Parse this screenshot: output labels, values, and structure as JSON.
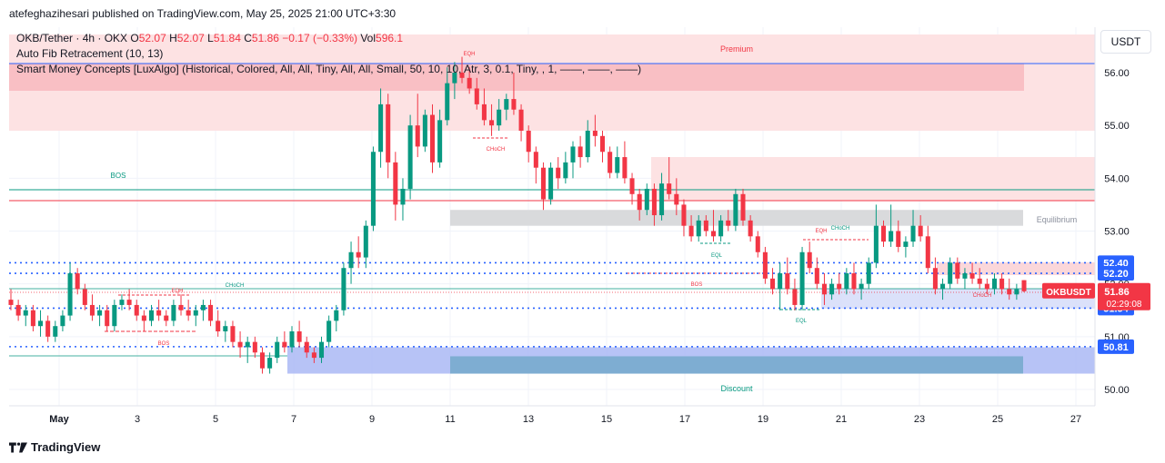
{
  "header": {
    "credit": "atefeghazihesari published on TradingView.com, May 25, 2025 21:00 UTC+3:30"
  },
  "legend": {
    "symbol": "OKB/Tether · 4h · OKX",
    "open_label": "O",
    "open": "52.07",
    "high_label": "H",
    "high": "52.07",
    "low_label": "L",
    "low": "51.84",
    "close_label": "C",
    "close": "51.86",
    "change": "−0.17 (−0.33%)",
    "vol_label": "Vol",
    "vol": "596.1",
    "indicator1": "Auto Fib Retracement (10, 13)",
    "indicator2": "Smart Money Concepts [LuxAlgo] (Historical, Colored, All, All, Tiny, All, All, Small, 50, 10, 10, Atr, 3, 0.1, Tiny, , 1, ——, ——, ——)"
  },
  "brand": "TradingView",
  "currency": "USDT",
  "colors": {
    "up": "#089981",
    "down": "#f23645",
    "premium_zone": "#fde2e3",
    "discount_zone": "#aab8f5",
    "equilibrium_zone": "#d9dadc",
    "level_line": "#2962ff"
  },
  "chart_data": {
    "type": "candlestick",
    "symbol": "OKBUSDT",
    "timeframe": "4h",
    "ylim": [
      49.6,
      56.7
    ],
    "y_ticks": [
      "50.00",
      "51.00",
      "52.00",
      "53.00",
      "54.00",
      "55.00",
      "56.00"
    ],
    "x_ticks": [
      "May",
      "3",
      "5",
      "7",
      "9",
      "11",
      "13",
      "15",
      "17",
      "19",
      "21",
      "23",
      "25",
      "27"
    ],
    "x_tick_days": [
      1,
      3,
      5,
      7,
      9,
      11,
      13,
      15,
      17,
      19,
      21,
      23,
      25,
      27
    ],
    "candles": [
      [
        51.7,
        51.9,
        51.5,
        51.6
      ],
      [
        51.6,
        51.7,
        51.3,
        51.4
      ],
      [
        51.4,
        51.6,
        51.2,
        51.5
      ],
      [
        51.5,
        51.6,
        51.1,
        51.2
      ],
      [
        51.2,
        51.5,
        51.0,
        51.3
      ],
      [
        51.3,
        51.4,
        50.9,
        51.0
      ],
      [
        51.0,
        51.3,
        50.9,
        51.2
      ],
      [
        51.2,
        51.5,
        51.1,
        51.4
      ],
      [
        51.4,
        52.4,
        51.3,
        52.2
      ],
      [
        52.2,
        52.3,
        51.8,
        51.9
      ],
      [
        51.9,
        52.0,
        51.5,
        51.6
      ],
      [
        51.6,
        51.8,
        51.3,
        51.4
      ],
      [
        51.4,
        51.6,
        51.2,
        51.5
      ],
      [
        51.5,
        51.6,
        51.1,
        51.2
      ],
      [
        51.2,
        51.7,
        51.1,
        51.6
      ],
      [
        51.6,
        51.8,
        51.5,
        51.7
      ],
      [
        51.7,
        51.9,
        51.5,
        51.6
      ],
      [
        51.6,
        51.7,
        51.3,
        51.4
      ],
      [
        51.4,
        51.5,
        51.1,
        51.3
      ],
      [
        51.3,
        51.6,
        51.2,
        51.5
      ],
      [
        51.5,
        51.7,
        51.3,
        51.4
      ],
      [
        51.4,
        51.5,
        51.2,
        51.3
      ],
      [
        51.3,
        51.7,
        51.2,
        51.6
      ],
      [
        51.6,
        51.8,
        51.4,
        51.5
      ],
      [
        51.5,
        51.7,
        51.3,
        51.4
      ],
      [
        51.4,
        51.6,
        51.2,
        51.5
      ],
      [
        51.5,
        51.7,
        51.3,
        51.6
      ],
      [
        51.6,
        51.7,
        51.2,
        51.3
      ],
      [
        51.3,
        51.5,
        51.0,
        51.1
      ],
      [
        51.1,
        51.3,
        50.9,
        51.2
      ],
      [
        51.2,
        51.3,
        50.8,
        50.9
      ],
      [
        50.9,
        51.1,
        50.6,
        50.8
      ],
      [
        50.8,
        51.0,
        50.5,
        50.9
      ],
      [
        50.9,
        51.0,
        50.6,
        50.7
      ],
      [
        50.7,
        50.8,
        50.3,
        50.4
      ],
      [
        50.4,
        50.7,
        50.3,
        50.6
      ],
      [
        50.6,
        51.0,
        50.5,
        50.9
      ],
      [
        50.9,
        51.1,
        50.7,
        50.8
      ],
      [
        50.8,
        51.2,
        50.7,
        51.1
      ],
      [
        51.1,
        51.3,
        50.8,
        50.9
      ],
      [
        50.9,
        51.0,
        50.6,
        50.7
      ],
      [
        50.7,
        50.8,
        50.5,
        50.6
      ],
      [
        50.6,
        51.0,
        50.5,
        50.9
      ],
      [
        50.9,
        51.4,
        50.8,
        51.3
      ],
      [
        51.3,
        51.6,
        51.1,
        51.5
      ],
      [
        51.5,
        52.4,
        51.4,
        52.3
      ],
      [
        52.3,
        52.8,
        52.0,
        52.6
      ],
      [
        52.6,
        52.9,
        52.3,
        52.5
      ],
      [
        52.5,
        53.2,
        52.3,
        53.1
      ],
      [
        53.1,
        54.6,
        53.0,
        54.5
      ],
      [
        54.5,
        55.7,
        54.2,
        55.4
      ],
      [
        55.4,
        55.6,
        54.0,
        54.3
      ],
      [
        54.3,
        54.5,
        53.2,
        53.5
      ],
      [
        53.5,
        54.0,
        53.2,
        53.8
      ],
      [
        53.8,
        55.2,
        53.6,
        55.0
      ],
      [
        55.0,
        55.6,
        54.4,
        54.6
      ],
      [
        54.6,
        55.3,
        54.5,
        55.2
      ],
      [
        55.2,
        55.4,
        54.1,
        54.3
      ],
      [
        54.3,
        55.3,
        54.2,
        55.1
      ],
      [
        55.1,
        56.1,
        55.0,
        55.8
      ],
      [
        55.8,
        56.2,
        55.5,
        56.0
      ],
      [
        56.0,
        56.3,
        55.8,
        55.9
      ],
      [
        55.9,
        56.1,
        55.6,
        55.7
      ],
      [
        55.7,
        55.9,
        55.3,
        55.4
      ],
      [
        55.4,
        55.7,
        55.0,
        55.1
      ],
      [
        55.1,
        55.4,
        54.8,
        55.0
      ],
      [
        55.0,
        55.5,
        54.9,
        55.3
      ],
      [
        55.3,
        55.6,
        55.1,
        55.5
      ],
      [
        55.5,
        56.0,
        55.2,
        55.3
      ],
      [
        55.3,
        55.4,
        54.7,
        54.9
      ],
      [
        54.9,
        55.0,
        54.3,
        54.5
      ],
      [
        54.5,
        54.6,
        53.9,
        54.2
      ],
      [
        54.2,
        54.3,
        53.4,
        53.6
      ],
      [
        53.6,
        54.3,
        53.5,
        54.2
      ],
      [
        54.2,
        54.4,
        53.8,
        54.0
      ],
      [
        54.0,
        54.5,
        53.9,
        54.3
      ],
      [
        54.3,
        54.7,
        54.0,
        54.6
      ],
      [
        54.6,
        54.8,
        54.2,
        54.4
      ],
      [
        54.4,
        55.1,
        54.3,
        54.9
      ],
      [
        54.9,
        55.2,
        54.6,
        54.8
      ],
      [
        54.8,
        54.9,
        54.3,
        54.5
      ],
      [
        54.5,
        54.6,
        54.0,
        54.1
      ],
      [
        54.1,
        54.6,
        54.0,
        54.4
      ],
      [
        54.4,
        54.7,
        53.9,
        54.0
      ],
      [
        54.0,
        54.1,
        53.5,
        53.7
      ],
      [
        53.7,
        53.8,
        53.2,
        53.4
      ],
      [
        53.4,
        53.9,
        53.3,
        53.8
      ],
      [
        53.8,
        53.9,
        53.1,
        53.3
      ],
      [
        53.3,
        54.1,
        53.2,
        53.9
      ],
      [
        53.9,
        54.4,
        53.6,
        53.7
      ],
      [
        53.7,
        54.0,
        53.3,
        53.5
      ],
      [
        53.5,
        53.6,
        52.9,
        53.1
      ],
      [
        53.1,
        53.3,
        52.8,
        52.9
      ],
      [
        52.9,
        53.3,
        52.8,
        53.2
      ],
      [
        53.2,
        53.3,
        52.9,
        53.0
      ],
      [
        53.0,
        53.4,
        52.8,
        52.9
      ],
      [
        52.9,
        53.3,
        52.8,
        53.2
      ],
      [
        53.2,
        53.4,
        53.0,
        53.1
      ],
      [
        53.1,
        53.8,
        53.0,
        53.7
      ],
      [
        53.7,
        53.8,
        53.1,
        53.2
      ],
      [
        53.2,
        53.3,
        52.8,
        52.9
      ],
      [
        52.9,
        53.0,
        52.5,
        52.6
      ],
      [
        52.6,
        52.7,
        52.0,
        52.1
      ],
      [
        52.1,
        52.3,
        51.8,
        51.9
      ],
      [
        51.9,
        52.4,
        51.5,
        52.2
      ],
      [
        52.2,
        52.5,
        51.8,
        51.9
      ],
      [
        51.9,
        52.1,
        51.5,
        51.6
      ],
      [
        51.6,
        52.7,
        51.5,
        52.6
      ],
      [
        52.6,
        52.8,
        52.2,
        52.3
      ],
      [
        52.3,
        52.5,
        51.9,
        52.0
      ],
      [
        52.0,
        52.2,
        51.6,
        51.8
      ],
      [
        51.8,
        52.1,
        51.7,
        52.0
      ],
      [
        52.0,
        52.2,
        51.8,
        51.9
      ],
      [
        51.9,
        52.3,
        51.8,
        52.2
      ],
      [
        52.2,
        52.4,
        51.8,
        51.9
      ],
      [
        51.9,
        52.1,
        51.7,
        52.0
      ],
      [
        52.0,
        52.5,
        51.9,
        52.4
      ],
      [
        52.4,
        53.5,
        52.3,
        53.1
      ],
      [
        53.1,
        53.2,
        52.7,
        52.8
      ],
      [
        52.8,
        53.5,
        52.7,
        53.0
      ],
      [
        53.0,
        53.2,
        52.6,
        52.7
      ],
      [
        52.7,
        52.9,
        52.5,
        52.8
      ],
      [
        52.8,
        53.4,
        52.7,
        53.1
      ],
      [
        53.1,
        53.3,
        52.8,
        52.9
      ],
      [
        52.9,
        53.1,
        52.2,
        52.3
      ],
      [
        52.3,
        52.5,
        51.8,
        51.9
      ],
      [
        51.9,
        52.1,
        51.7,
        52.0
      ],
      [
        52.0,
        52.5,
        51.9,
        52.4
      ],
      [
        52.4,
        52.5,
        52.0,
        52.1
      ],
      [
        52.1,
        52.3,
        51.9,
        52.2
      ],
      [
        52.2,
        52.4,
        52.0,
        52.1
      ],
      [
        52.1,
        52.3,
        51.9,
        52.0
      ],
      [
        52.0,
        52.1,
        51.8,
        51.9
      ],
      [
        51.9,
        52.2,
        51.8,
        52.1
      ],
      [
        52.1,
        52.2,
        51.8,
        51.9
      ],
      [
        51.9,
        52.1,
        51.7,
        51.8
      ],
      [
        51.8,
        52.0,
        51.7,
        51.9
      ],
      [
        52.07,
        52.07,
        51.84,
        51.86
      ]
    ],
    "zones": [
      {
        "name": "Premium",
        "type": "premium",
        "y1": 54.9,
        "y2": 56.7
      },
      {
        "name": "Equilibrium",
        "type": "equilibrium",
        "y1": 53.1,
        "y2": 53.4
      },
      {
        "name": "Discount",
        "type": "discount",
        "y1": 50.3,
        "y2": 50.8
      }
    ],
    "price_levels": [
      {
        "value": 52.4,
        "label": "52.40"
      },
      {
        "value": 52.2,
        "label": "52.20"
      },
      {
        "value": 51.54,
        "label": "51.54"
      },
      {
        "value": 50.81,
        "label": "50.81"
      }
    ],
    "current_price": {
      "label": "OKBUSDT",
      "value": "51.86",
      "countdown": "02:29:08"
    },
    "structure_labels": [
      {
        "text": "EQH"
      },
      {
        "text": "CHoCH"
      },
      {
        "text": "BOS"
      },
      {
        "text": "EQL"
      },
      {
        "text": "Premium"
      },
      {
        "text": "Equilibrium"
      },
      {
        "text": "Discount"
      }
    ]
  }
}
